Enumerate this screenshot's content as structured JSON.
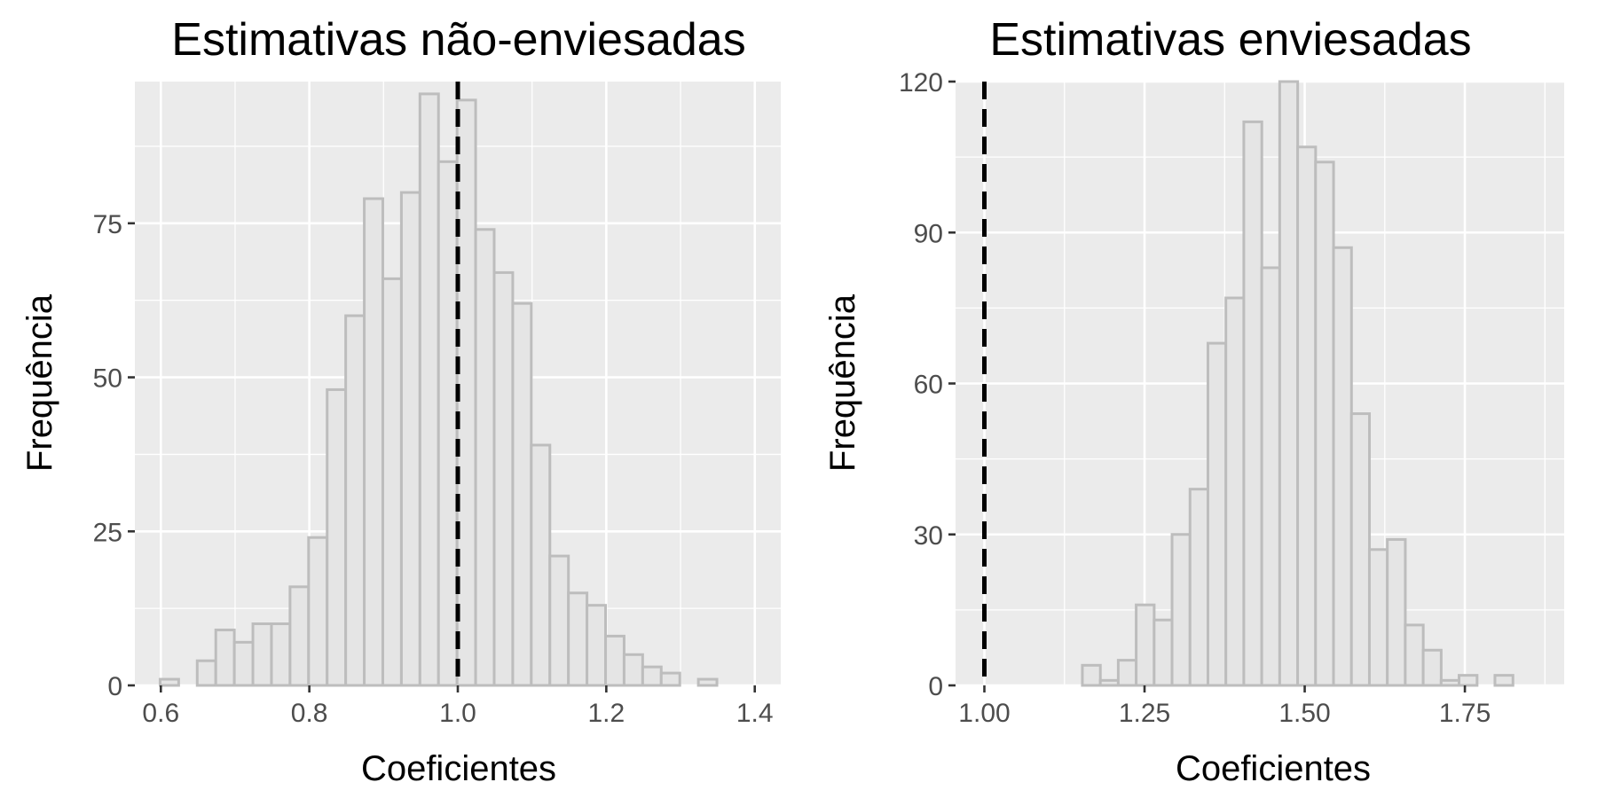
{
  "chart_data": [
    {
      "type": "bar",
      "title": "Estimativas não-enviesadas",
      "xlabel": "Coeficientes",
      "ylabel": "Frequência",
      "xlim": [
        0.565,
        1.435
      ],
      "ylim": [
        0,
        98
      ],
      "x_ticks": [
        0.6,
        0.8,
        1.0,
        1.2,
        1.4
      ],
      "x_tick_labels": [
        "0.6",
        "0.8",
        "1.0",
        "1.2",
        "1.4"
      ],
      "y_ticks": [
        0,
        25,
        50,
        75
      ],
      "y_tick_labels": [
        "0",
        "25",
        "50",
        "75"
      ],
      "grid": true,
      "reference_line_x": 1.0,
      "bin_width": 0.025,
      "bin_centers": [
        0.6115,
        0.6365,
        0.6615,
        0.6865,
        0.7115,
        0.7365,
        0.7615,
        0.7865,
        0.8115,
        0.8365,
        0.8615,
        0.8865,
        0.9115,
        0.9365,
        0.9615,
        0.9865,
        1.0115,
        1.0365,
        1.0615,
        1.0865,
        1.1115,
        1.1365,
        1.1615,
        1.1865,
        1.2115,
        1.2365,
        1.2615,
        1.2865,
        1.3115,
        1.3365,
        1.3615,
        1.3865
      ],
      "values": [
        1,
        0,
        4,
        9,
        7,
        10,
        10,
        16,
        24,
        48,
        60,
        79,
        66,
        80,
        96,
        85,
        95,
        74,
        67,
        62,
        39,
        21,
        15,
        13,
        8,
        5,
        3,
        2,
        0,
        1,
        0,
        0
      ]
    },
    {
      "type": "bar",
      "title": "Estimativas enviesadas",
      "xlabel": "Coeficientes",
      "ylabel": "Frequência",
      "xlim": [
        0.955,
        1.905
      ],
      "ylim": [
        0,
        120
      ],
      "x_ticks": [
        1.0,
        1.25,
        1.5,
        1.75
      ],
      "x_tick_labels": [
        "1.00",
        "1.25",
        "1.50",
        "1.75"
      ],
      "y_ticks": [
        0,
        30,
        60,
        90,
        120
      ],
      "y_tick_labels": [
        "0",
        "30",
        "60",
        "90",
        "120"
      ],
      "grid": true,
      "reference_line_x": 1.0,
      "bin_width": 0.0281,
      "bin_centers": [
        0.999,
        1.027,
        1.055,
        1.083,
        1.111,
        1.139,
        1.167,
        1.195,
        1.223,
        1.251,
        1.279,
        1.307,
        1.335,
        1.363,
        1.391,
        1.419,
        1.447,
        1.475,
        1.503,
        1.531,
        1.559,
        1.587,
        1.615,
        1.643,
        1.671,
        1.699,
        1.727,
        1.755,
        1.783,
        1.811,
        1.839
      ],
      "values": [
        0,
        0,
        0,
        0,
        0,
        0,
        4,
        1,
        5,
        16,
        13,
        30,
        39,
        68,
        77,
        112,
        83,
        120,
        107,
        104,
        87,
        54,
        27,
        29,
        12,
        7,
        1,
        2,
        0,
        2,
        0
      ]
    }
  ]
}
